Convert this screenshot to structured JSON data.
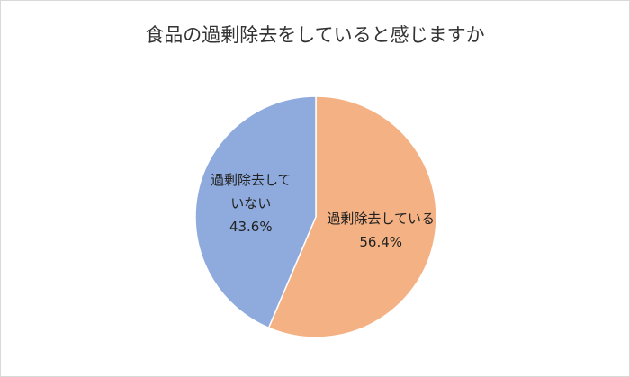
{
  "chart_data": {
    "type": "pie",
    "title": "食品の過剰除去をしていると感じますか",
    "categories": [
      "過剰除去している",
      "過剰除去していない"
    ],
    "values": [
      56.4,
      43.6
    ],
    "value_labels": [
      "56.4%",
      "43.6%"
    ],
    "colors": [
      "#f4b183",
      "#8faadc"
    ]
  }
}
